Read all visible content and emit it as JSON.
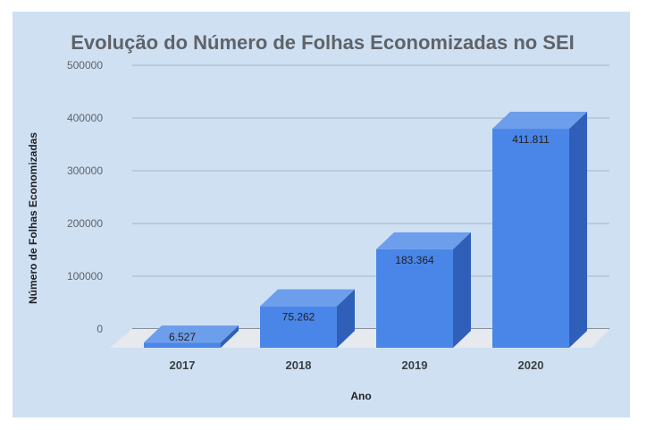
{
  "chart_data": {
    "type": "bar",
    "title": "Evolução do Número de Folhas Economizadas no SEI",
    "xlabel": "Ano",
    "ylabel": "Número de Folhas Economizadas",
    "categories": [
      "2017",
      "2018",
      "2019",
      "2020"
    ],
    "values": [
      6527,
      75262,
      183364,
      411811
    ],
    "data_labels": [
      "6.527",
      "75.262",
      "183.364",
      "411.811"
    ],
    "yticks": [
      "0",
      "100000",
      "200000",
      "300000",
      "400000",
      "500000"
    ],
    "ylim": [
      0,
      500000
    ],
    "grid": true,
    "legend": "none",
    "style": "3d",
    "colors": {
      "background": "#cfe0f3",
      "bar_front": "#4a86e8",
      "bar_top": "#6d9eeb",
      "bar_side": "#2f5fb8",
      "floor": "#e6e9ee",
      "grid": "#a9b4c1"
    }
  }
}
